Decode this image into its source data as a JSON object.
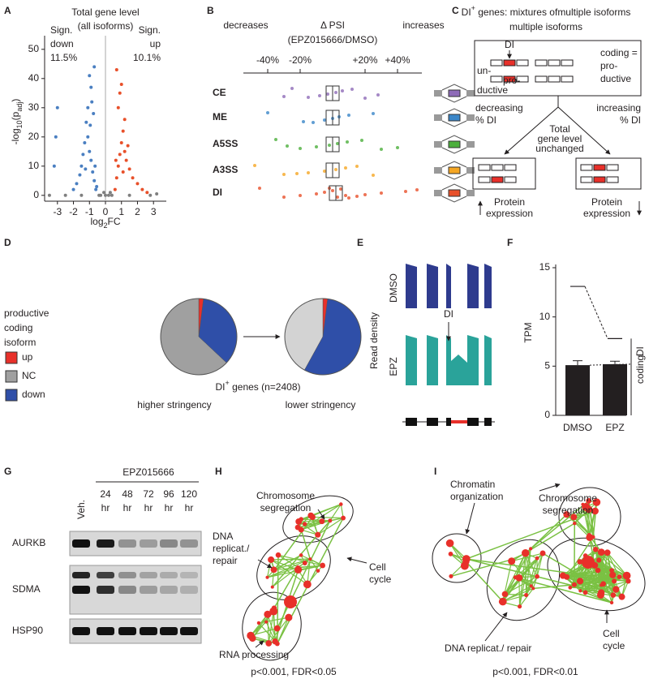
{
  "panel_labels": [
    "A",
    "B",
    "C",
    "D",
    "E",
    "F",
    "G",
    "H",
    "I"
  ],
  "chart_data": [
    {
      "type": "scatter",
      "title": "Total gene level",
      "subtitle": "(all isoforms)",
      "x_label": [
        "log",
        "2",
        "FC"
      ],
      "y_label": [
        "-log",
        "10",
        "(p",
        "adj",
        ")"
      ],
      "xlim": [
        -3.8,
        3.8
      ],
      "xticks": [
        -3,
        -2,
        -1,
        0,
        1,
        2,
        3
      ],
      "ylim": [
        -2,
        53
      ],
      "yticks": [
        0,
        10,
        20,
        30,
        40,
        50
      ],
      "series": [
        {
          "label_lines": [
            "Sign.",
            "down",
            "11.5%"
          ],
          "color": "#4a7fc1",
          "x": [
            -0.6,
            -0.7,
            -0.8,
            -0.9,
            -1.0,
            -1.1,
            -1.2,
            -0.75,
            -0.85,
            -0.9,
            -1.0,
            -0.7,
            -1.3,
            -1.4,
            -1.5,
            -1.6,
            -1.8,
            -2.0,
            -0.65,
            -0.95,
            -1.1,
            -1.25,
            -0.55,
            -3.0,
            -3.1,
            -3.2
          ],
          "values": [
            2,
            5,
            8,
            12,
            15,
            20,
            25,
            28,
            32,
            37,
            41,
            44,
            18,
            14,
            10,
            7,
            4,
            2,
            10,
            24,
            30,
            9,
            3,
            30,
            20,
            10
          ]
        },
        {
          "label_lines": [
            "Sign.",
            "up",
            "10.1%"
          ],
          "color": "#e8502a",
          "x": [
            0.6,
            0.7,
            0.8,
            0.9,
            1.0,
            1.1,
            1.2,
            0.8,
            0.9,
            1.0,
            0.7,
            1.3,
            1.5,
            1.7,
            2.0,
            2.3,
            1.1,
            1.4,
            0.65,
            1.2,
            2.6
          ],
          "values": [
            2,
            6,
            10,
            14,
            18,
            22,
            26,
            30,
            35,
            38,
            43,
            12,
            9,
            6,
            4,
            2,
            8,
            17,
            12,
            15,
            1
          ]
        },
        {
          "color": "#7f7f7f",
          "x": [
            -0.3,
            0.2,
            -0.1,
            0.3,
            -0.4,
            0.4,
            -2.5,
            2.8,
            -1.5,
            1.5,
            0,
            -3.5,
            3.2
          ],
          "values": [
            0,
            0,
            1,
            1,
            0,
            0,
            0,
            0,
            0,
            0,
            0,
            0,
            0.5
          ]
        }
      ]
    },
    {
      "type": "strip",
      "title": "Δ PSI",
      "subtitle": "(EPZ015666/DMSO)",
      "left_label": "decreases",
      "right_label": "increases",
      "xlim": [
        -55,
        55
      ],
      "xticks": [
        {
          "value": -40,
          "label": "-40%"
        },
        {
          "value": -20,
          "label": "-20%"
        },
        {
          "value": 20,
          "label": "+20%"
        },
        {
          "value": 40,
          "label": "+40%"
        }
      ],
      "series": [
        {
          "name": "CE",
          "color": "#8e6bb8",
          "values": [
            -25,
            -15,
            -8,
            -3,
            2,
            6,
            12,
            20,
            -30,
            28
          ],
          "box": [
            -4,
            0,
            4
          ]
        },
        {
          "name": "ME",
          "color": "#3a86c8",
          "values": [
            -40,
            -18,
            -5,
            0,
            4,
            10,
            25,
            -12
          ],
          "box": [
            -4,
            0,
            4
          ]
        },
        {
          "name": "A5SS",
          "color": "#4caf3c",
          "values": [
            -35,
            -20,
            -10,
            -2,
            3,
            9,
            18,
            30,
            40,
            -28
          ],
          "box": [
            -4,
            0,
            4
          ]
        },
        {
          "name": "A3SS",
          "color": "#f5a623",
          "values": [
            -48,
            -30,
            -15,
            -5,
            2,
            8,
            15,
            25,
            -22
          ],
          "box": [
            -4,
            0,
            4
          ]
        },
        {
          "name": "DI",
          "color": "#e8502a",
          "values": [
            -45,
            -30,
            -20,
            -10,
            -5,
            0,
            5,
            10,
            15,
            20,
            30,
            45,
            52,
            -2,
            3,
            8
          ],
          "box": [
            -2,
            2,
            6
          ]
        }
      ]
    },
    {
      "type": "pie",
      "legend_title": [
        "productive",
        "coding",
        "isoform"
      ],
      "categories": [
        "up",
        "NC",
        "down"
      ],
      "colors": [
        "#e8302a",
        "#a0a0a0",
        "#2f4fa8"
      ],
      "pies": [
        {
          "label": "higher stringency",
          "colors": [
            "#e8302a",
            "#a0a0a0",
            "#2f4fa8"
          ],
          "values": [
            2,
            63,
            35
          ]
        },
        {
          "label": "lower stringency",
          "colors": [
            "#e8302a",
            "#d3d3d3",
            "#2f4fa8"
          ],
          "values": [
            2,
            42,
            56
          ]
        }
      ],
      "caption": [
        "DI",
        "+",
        " genes (n=2408)"
      ]
    },
    {
      "type": "bar",
      "y_label": "TPM",
      "categories": [
        "DMSO",
        "EPZ"
      ],
      "values": [
        5.1,
        5.2
      ],
      "errors": [
        0.45,
        0.3
      ],
      "totals": [
        13.1,
        7.8
      ],
      "color": "#231f20",
      "ylim": [
        0,
        15
      ],
      "yticks": [
        0,
        5,
        10,
        15
      ],
      "bracket_labels": [
        "DI",
        "coding"
      ]
    }
  ],
  "panel_c": {
    "title": [
      "DI",
      "+",
      " genes: mixtures of",
      "multiple isoforms"
    ],
    "di": "DI",
    "unproductive": [
      "un-",
      "pro-",
      "ductive"
    ],
    "coding": [
      "coding =",
      "pro-",
      "ductive"
    ],
    "decreasing": [
      "decreasing",
      "% DI"
    ],
    "increasing": [
      "increasing",
      "% DI"
    ],
    "unchanged": [
      "Total",
      "gene level",
      "unchanged"
    ],
    "protein_left": [
      "Protein",
      "expression"
    ],
    "protein_right": [
      "Protein",
      "expression"
    ]
  },
  "panel_e": {
    "y_label": "Read density",
    "tracks": [
      "DMSO",
      "EPZ"
    ],
    "di": "DI"
  },
  "panel_g": {
    "treatment": "EPZ015666",
    "control": "Veh.",
    "times": [
      [
        "24",
        "hr"
      ],
      [
        "48",
        "hr"
      ],
      [
        "72",
        "hr"
      ],
      [
        "96",
        "hr"
      ],
      [
        "120",
        "hr"
      ]
    ],
    "rows": [
      "AURKB",
      "SDMA",
      "HSP90"
    ]
  },
  "panel_h": {
    "labels": [
      [
        "Chromosome",
        "segregation"
      ],
      [
        "DNA",
        "replicat./",
        "repair"
      ],
      [
        "Cell",
        "cycle"
      ],
      [
        "RNA processing"
      ]
    ],
    "stats": "p<0.001, FDR<0.05"
  },
  "panel_i": {
    "labels": [
      [
        "Chromatin",
        "organization"
      ],
      [
        "Chromosome",
        "segregation"
      ],
      [
        "DNA replicat./ repair"
      ],
      [
        "Cell",
        "cycle"
      ]
    ],
    "stats": "p<0.001, FDR<0.01"
  }
}
